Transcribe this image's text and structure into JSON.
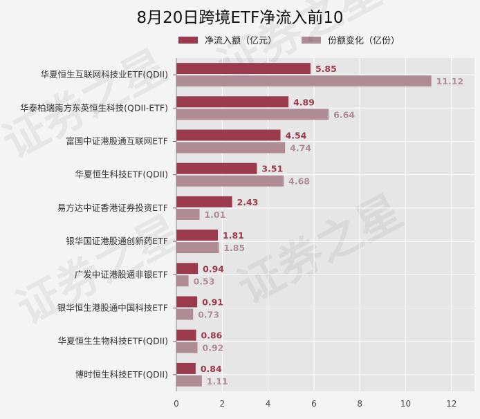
{
  "chart_data": {
    "type": "bar",
    "orientation": "horizontal",
    "title": "8月20日跨境ETF净流入前10",
    "categories": [
      "华夏恒生互联网科技业ETF(QDII)",
      "华泰柏瑞南方东英恒生科技(QDII-ETF)",
      "富国中证港股通互联网ETF",
      "华夏恒生科技ETF(QDII)",
      "易方达中证香港证券投资ETF",
      "银华国证港股通创新药ETF",
      "广发中证港股通非银ETF",
      "银华恒生港股通中国科技ETF",
      "华夏恒生生物科技ETF(QDII)",
      "博时恒生科技ETF(QDII)"
    ],
    "series": [
      {
        "name": "净流入额（亿元）",
        "color": "#9b3a4d",
        "values": [
          5.85,
          4.89,
          4.54,
          3.51,
          2.43,
          1.81,
          0.94,
          0.91,
          0.86,
          0.84
        ],
        "labels": [
          "5.85",
          "4.89",
          "4.54",
          "3.51",
          "2.43",
          "1.81",
          "0.94",
          "0.91",
          "0.86",
          "0.84"
        ]
      },
      {
        "name": "份额变化（亿份）",
        "color": "#ae8b95",
        "values": [
          11.12,
          6.64,
          4.74,
          4.68,
          1.01,
          1.85,
          0.53,
          0.73,
          0.92,
          1.11
        ],
        "labels": [
          "11.12",
          "6.64",
          "4.74",
          "4.68",
          "1.01",
          "1.85",
          "0.53",
          "0.73",
          "0.92",
          "1.11"
        ]
      }
    ],
    "xlim": [
      0,
      13
    ],
    "xticks": [
      "0",
      "2",
      "4",
      "6",
      "8",
      "10",
      "12"
    ],
    "grid": true,
    "legend_position": "top",
    "watermark": "证券之星"
  }
}
